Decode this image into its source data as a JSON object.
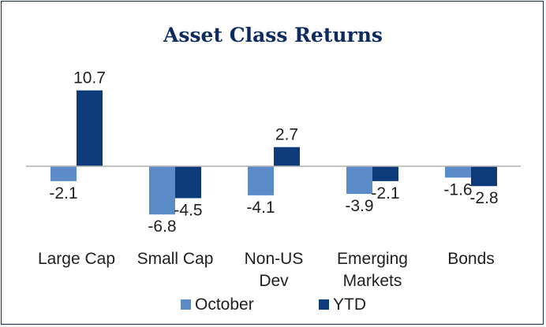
{
  "chart_data": {
    "type": "bar",
    "title": "Asset Class Returns",
    "categories": [
      [
        "Large Cap"
      ],
      [
        "Small Cap"
      ],
      [
        "Non-US",
        "Dev"
      ],
      [
        "Emerging",
        "Markets"
      ],
      [
        "Bonds"
      ]
    ],
    "series": [
      {
        "name": "October",
        "values": [
          -2.1,
          -6.8,
          -4.1,
          -3.9,
          -1.6
        ],
        "color": "#5b8cc9"
      },
      {
        "name": "YTD",
        "values": [
          10.7,
          -4.5,
          2.7,
          -2.1,
          -2.8
        ],
        "color": "#0d3a7a"
      }
    ],
    "ylim": [
      -7.5,
      11
    ],
    "grid": false,
    "legend": "bottom",
    "zero_line_color": "#b0b0b0"
  }
}
